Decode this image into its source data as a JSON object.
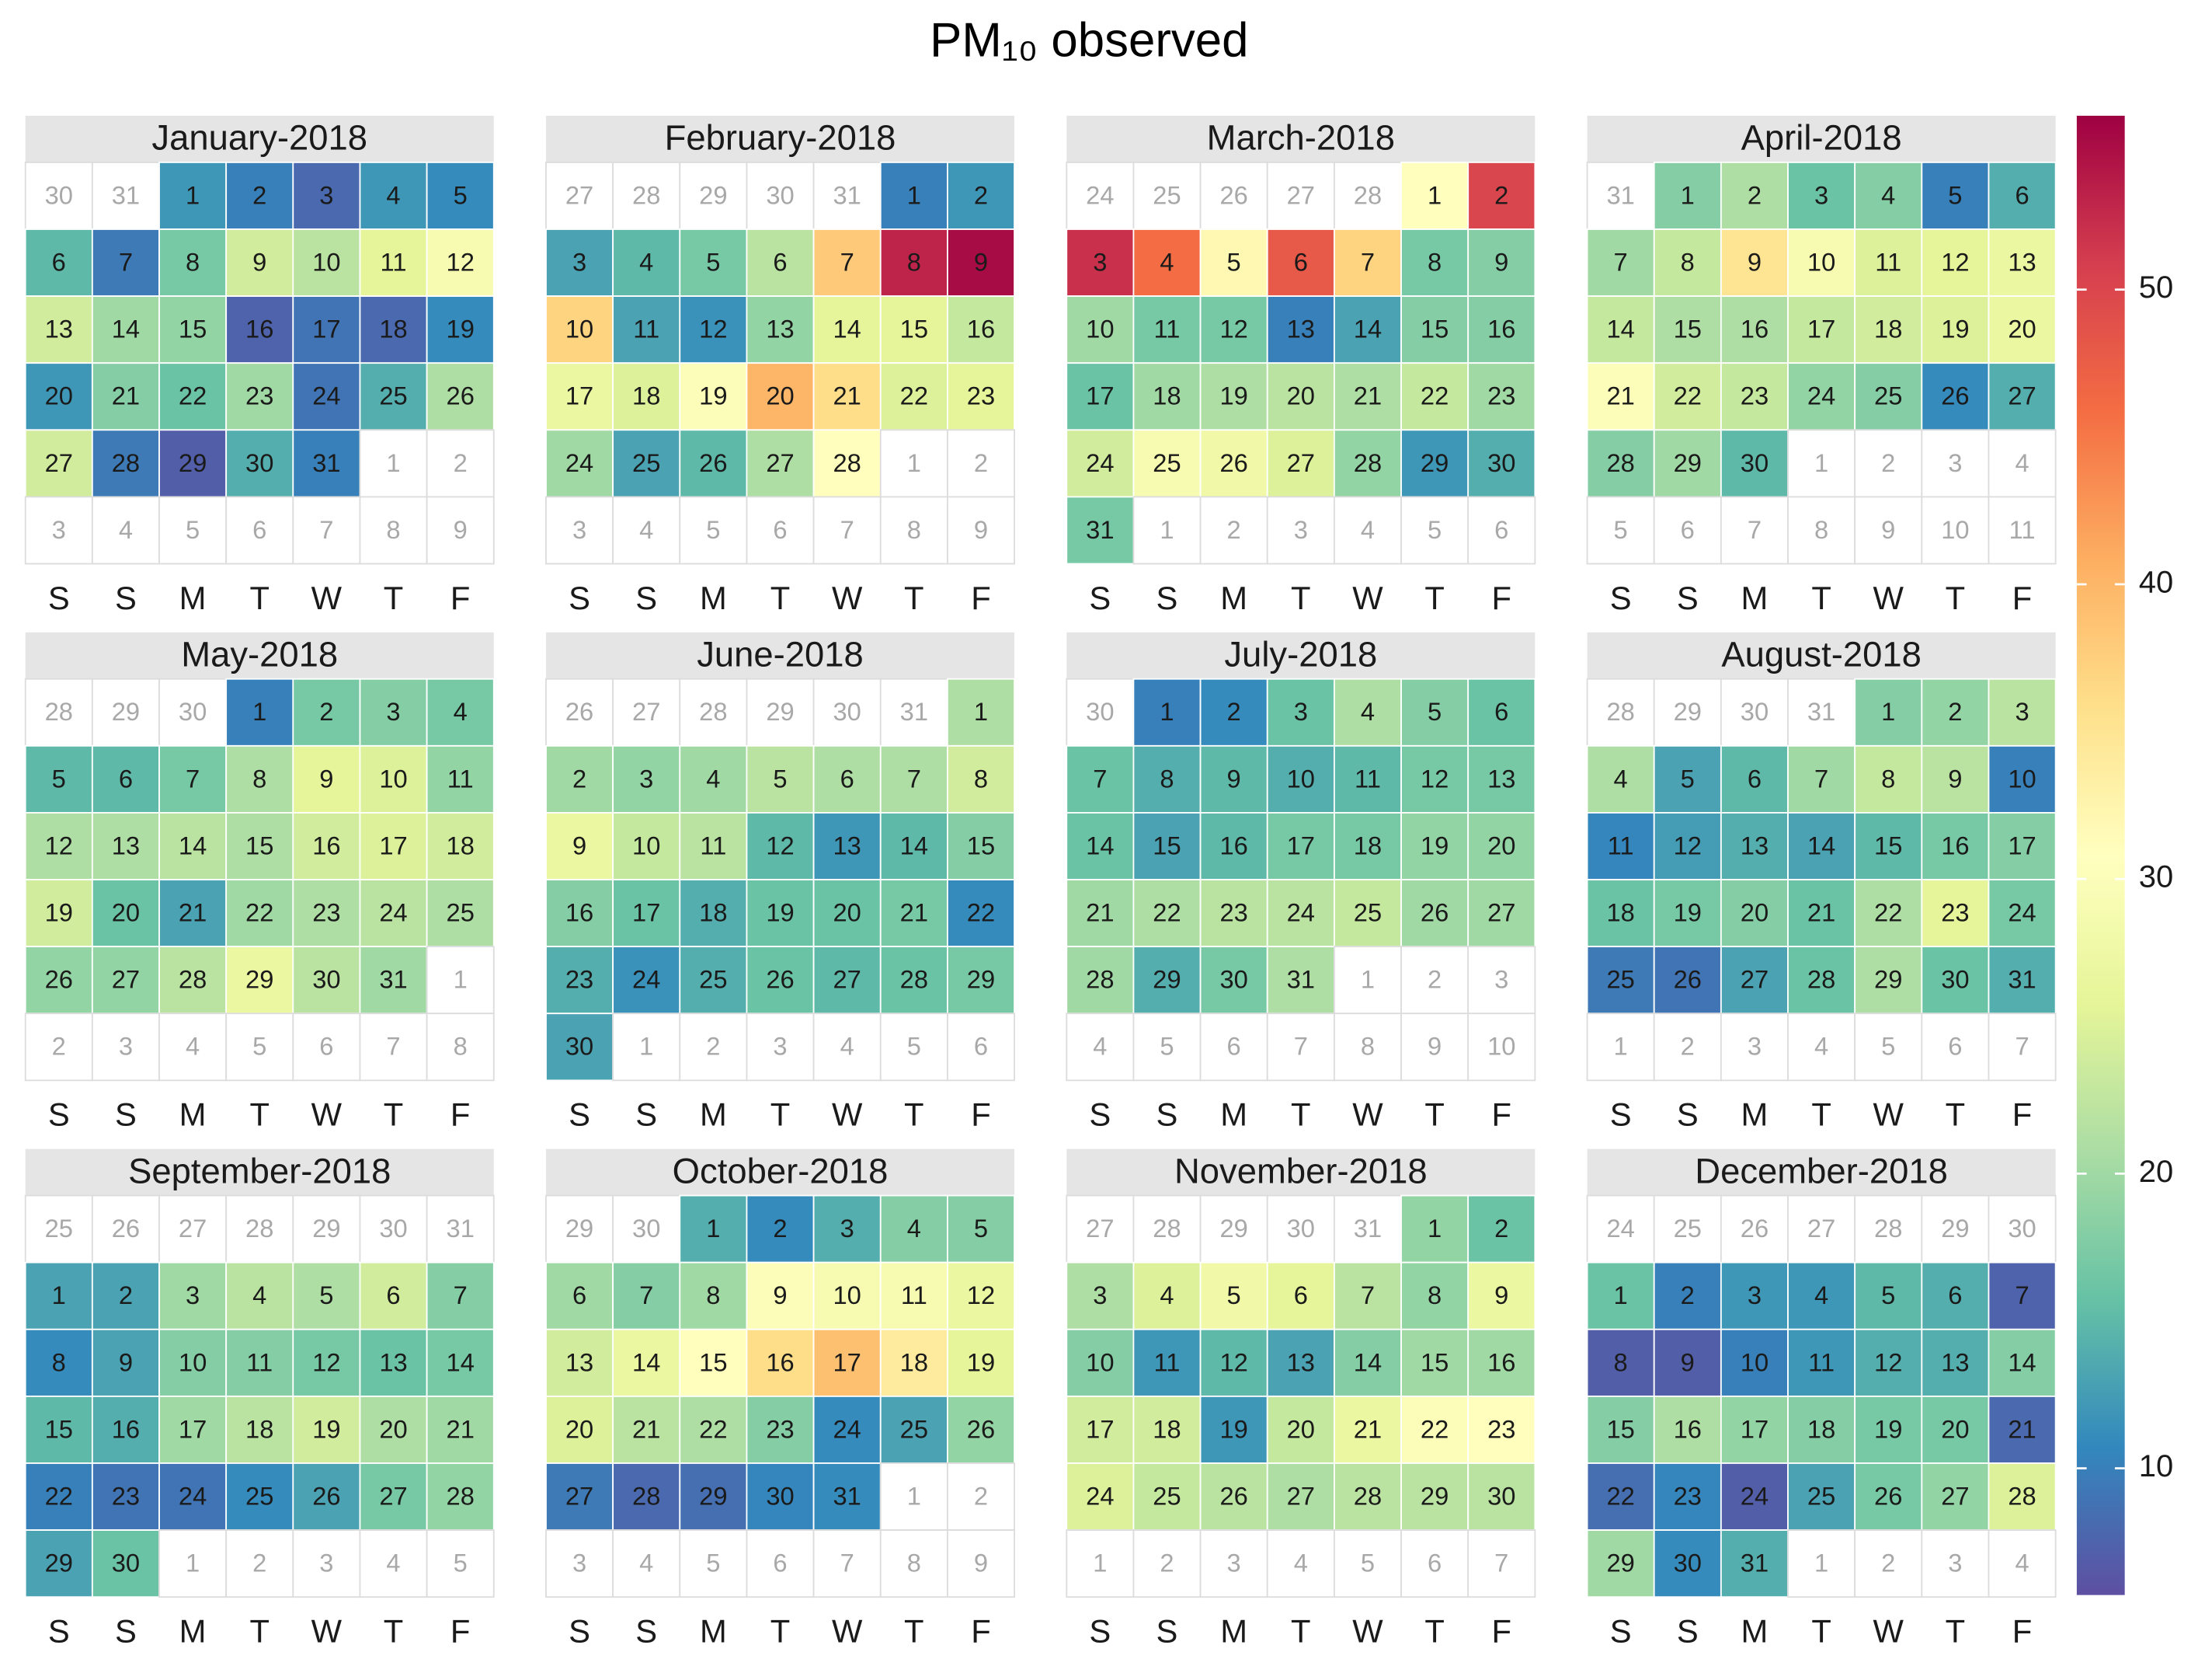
{
  "chart_data": {
    "type": "calendar",
    "title": "PM₁₀ observed",
    "weekdays": [
      "S",
      "S",
      "M",
      "T",
      "W",
      "T",
      "F"
    ],
    "zlim": [
      5.7,
      55.9
    ],
    "zticks": [
      10,
      20,
      30,
      40,
      50
    ],
    "colors": [
      "#5e4fa2",
      "#3288bd",
      "#66c2a5",
      "#abdda4",
      "#e6f598",
      "#ffffbf",
      "#fee08b",
      "#fdae61",
      "#f46d43",
      "#d53e4f",
      "#9e0142"
    ],
    "months": [
      {
        "name": "January-2018",
        "before": [
          30,
          31
        ],
        "days": [
          1,
          2,
          3,
          4,
          5,
          6,
          7,
          8,
          9,
          10,
          11,
          12,
          13,
          14,
          15,
          16,
          17,
          18,
          19,
          20,
          21,
          22,
          23,
          24,
          25,
          26,
          27,
          28,
          29,
          30,
          31
        ],
        "after": [
          1,
          2,
          3,
          4,
          5,
          6,
          7,
          8,
          9
        ],
        "values": [
          12,
          10,
          8,
          12,
          11,
          15,
          9.5,
          17,
          24,
          22,
          26,
          29,
          24,
          20,
          19,
          7.5,
          9,
          8,
          11,
          12,
          18,
          16,
          20,
          9,
          14,
          21,
          24,
          9.5,
          7,
          14,
          10
        ]
      },
      {
        "name": "February-2018",
        "before": [
          27,
          28,
          29,
          30,
          31
        ],
        "days": [
          1,
          2,
          3,
          4,
          5,
          6,
          7,
          8,
          9,
          10,
          11,
          12,
          13,
          14,
          15,
          16,
          17,
          18,
          19,
          20,
          21,
          22,
          23,
          24,
          25,
          26,
          27,
          28
        ],
        "after": [
          1,
          2,
          3,
          4,
          5,
          6,
          7,
          8,
          9
        ],
        "values": [
          10,
          12,
          13,
          15,
          17,
          22,
          38,
          53,
          55,
          37,
          13,
          11.5,
          19,
          26,
          26,
          23,
          27,
          25,
          30,
          40,
          36,
          25,
          26,
          20,
          13,
          15,
          21,
          31
        ]
      },
      {
        "name": "March-2018",
        "before": [
          24,
          25,
          26,
          27,
          28
        ],
        "days": [
          1,
          2,
          3,
          4,
          5,
          6,
          7,
          8,
          9,
          10,
          11,
          12,
          13,
          14,
          15,
          16,
          17,
          18,
          19,
          20,
          21,
          22,
          23,
          24,
          25,
          26,
          27,
          28,
          29,
          30,
          31
        ],
        "after": [
          1,
          2,
          3,
          4,
          5,
          6
        ],
        "values": [
          31,
          50,
          52,
          46,
          32,
          48,
          37,
          17,
          18,
          20,
          17,
          17,
          10,
          13,
          18,
          18,
          16,
          20,
          21,
          22,
          21,
          23,
          20,
          24,
          29,
          28,
          25,
          19,
          12,
          14,
          17
        ]
      },
      {
        "name": "April-2018",
        "before": [
          31
        ],
        "days": [
          1,
          2,
          3,
          4,
          5,
          6,
          7,
          8,
          9,
          10,
          11,
          12,
          13,
          14,
          15,
          16,
          17,
          18,
          19,
          20,
          21,
          22,
          23,
          24,
          25,
          26,
          27,
          28,
          29,
          30
        ],
        "after": [
          1,
          2,
          3,
          4,
          5,
          6,
          7,
          8,
          9,
          10,
          11
        ],
        "values": [
          18,
          21,
          16,
          18,
          10,
          14,
          20,
          23,
          35,
          29,
          25,
          26,
          27,
          23,
          21,
          21,
          23,
          24,
          25,
          27,
          30,
          24,
          23,
          19,
          18,
          11,
          14,
          18,
          20,
          15
        ]
      },
      {
        "name": "May-2018",
        "before": [
          28,
          29,
          30
        ],
        "days": [
          1,
          2,
          3,
          4,
          5,
          6,
          7,
          8,
          9,
          10,
          11,
          12,
          13,
          14,
          15,
          16,
          17,
          18,
          19,
          20,
          21,
          22,
          23,
          24,
          25,
          26,
          27,
          28,
          29,
          30,
          31
        ],
        "after": [
          1,
          2,
          3,
          4,
          5,
          6,
          7,
          8
        ],
        "values": [
          10,
          17,
          18,
          17,
          15,
          15,
          17,
          21,
          26,
          25,
          19,
          21,
          21,
          22,
          21,
          24,
          25,
          24,
          24,
          16,
          13,
          20,
          21,
          22,
          21,
          19,
          19,
          22,
          27,
          22,
          20
        ]
      },
      {
        "name": "June-2018",
        "before": [
          26,
          27,
          28,
          29,
          30,
          31
        ],
        "days": [
          1,
          2,
          3,
          4,
          5,
          6,
          7,
          8,
          9,
          10,
          11,
          12,
          13,
          14,
          15,
          16,
          17,
          18,
          19,
          20,
          21,
          22,
          23,
          24,
          25,
          26,
          27,
          28,
          29,
          30
        ],
        "after": [
          1,
          2,
          3,
          4,
          5,
          6
        ],
        "values": [
          21,
          20,
          19,
          20,
          22,
          21,
          21,
          24,
          27,
          23,
          22,
          15,
          12,
          15,
          18,
          18,
          16,
          14,
          16,
          16,
          17,
          11,
          14,
          11.5,
          14,
          16,
          15,
          16,
          17,
          13
        ]
      },
      {
        "name": "July-2018",
        "before": [
          30
        ],
        "days": [
          1,
          2,
          3,
          4,
          5,
          6,
          7,
          8,
          9,
          10,
          11,
          12,
          13,
          14,
          15,
          16,
          17,
          18,
          19,
          20,
          21,
          22,
          23,
          24,
          25,
          26,
          27,
          28,
          29,
          30,
          31
        ],
        "after": [
          1,
          2,
          3,
          4,
          5,
          6,
          7,
          8,
          9,
          10
        ],
        "values": [
          10,
          11,
          16,
          21,
          18,
          16,
          16,
          14,
          15,
          14,
          15,
          17,
          17,
          16,
          13,
          15,
          17,
          17,
          19,
          19,
          20,
          21,
          22,
          22,
          23,
          20,
          20,
          20,
          14,
          17,
          21
        ]
      },
      {
        "name": "August-2018",
        "before": [
          28,
          29,
          30,
          31
        ],
        "days": [
          1,
          2,
          3,
          4,
          5,
          6,
          7,
          8,
          9,
          10,
          11,
          12,
          13,
          14,
          15,
          16,
          17,
          18,
          19,
          20,
          21,
          22,
          23,
          24,
          25,
          26,
          27,
          28,
          29,
          30,
          31
        ],
        "after": [
          1,
          2,
          3,
          4,
          5,
          6,
          7
        ],
        "values": [
          18,
          19,
          22,
          21,
          13,
          15,
          20,
          23,
          22,
          10,
          10.5,
          12.5,
          14,
          13,
          15,
          17,
          18,
          16,
          17,
          18,
          16,
          21,
          26,
          17,
          9.5,
          9,
          13,
          16,
          21,
          16,
          14
        ]
      },
      {
        "name": "September-2018",
        "before": [
          25,
          26,
          27,
          28,
          29,
          30,
          31
        ],
        "days": [
          1,
          2,
          3,
          4,
          5,
          6,
          7,
          8,
          9,
          10,
          11,
          12,
          13,
          14,
          15,
          16,
          17,
          18,
          19,
          20,
          21,
          22,
          23,
          24,
          25,
          26,
          27,
          28,
          29,
          30
        ],
        "after": [
          1,
          2,
          3,
          4,
          5
        ],
        "values": [
          13,
          13,
          20,
          22,
          21,
          24,
          18,
          11,
          13,
          18,
          18,
          17,
          16,
          17,
          15,
          14,
          20,
          22,
          24,
          21,
          20,
          10,
          9,
          9,
          11,
          13,
          17,
          19,
          13,
          16
        ]
      },
      {
        "name": "October-2018",
        "before": [
          29,
          30
        ],
        "days": [
          1,
          2,
          3,
          4,
          5,
          6,
          7,
          8,
          9,
          10,
          11,
          12,
          13,
          14,
          15,
          16,
          17,
          18,
          19,
          20,
          21,
          22,
          23,
          24,
          25,
          26,
          27,
          28,
          29,
          30,
          31
        ],
        "after": [
          1,
          2,
          3,
          4,
          5,
          6,
          7,
          8,
          9
        ],
        "values": [
          14,
          11,
          14,
          18,
          18,
          20,
          18,
          20,
          30,
          29,
          29,
          27,
          24,
          27,
          31,
          36,
          39,
          34,
          26,
          25,
          22,
          21,
          18,
          11,
          13,
          19,
          9.5,
          8,
          8.5,
          10.5,
          11
        ]
      },
      {
        "name": "November-2018",
        "before": [
          27,
          28,
          29,
          30,
          31
        ],
        "days": [
          1,
          2,
          3,
          4,
          5,
          6,
          7,
          8,
          9,
          10,
          11,
          12,
          13,
          14,
          15,
          16,
          17,
          18,
          19,
          20,
          21,
          22,
          23,
          24,
          25,
          26,
          27,
          28,
          29,
          30
        ],
        "after": [
          1,
          2,
          3,
          4,
          5,
          6,
          7
        ],
        "values": [
          19,
          16,
          21,
          25,
          28,
          26,
          22,
          19,
          27,
          18,
          12,
          15,
          13,
          18,
          20,
          20,
          24,
          24,
          12,
          23,
          27,
          30,
          31,
          25,
          23,
          22,
          21,
          22,
          22,
          22
        ]
      },
      {
        "name": "December-2018",
        "before": [
          24,
          25,
          26,
          27,
          28,
          29,
          30
        ],
        "days": [
          1,
          2,
          3,
          4,
          5,
          6,
          7,
          8,
          9,
          10,
          11,
          12,
          13,
          14,
          15,
          16,
          17,
          18,
          19,
          20,
          21,
          22,
          23,
          24,
          25,
          26,
          27,
          28,
          29,
          30,
          31
        ],
        "after": [
          1,
          2,
          3,
          4
        ],
        "values": [
          16,
          10,
          12,
          12,
          15,
          14,
          7.5,
          7,
          7,
          10,
          12,
          14,
          14,
          18,
          18,
          21,
          19,
          18,
          17,
          17,
          8,
          8.5,
          10.5,
          7,
          13,
          17,
          19,
          25,
          20,
          11,
          14
        ]
      }
    ]
  }
}
